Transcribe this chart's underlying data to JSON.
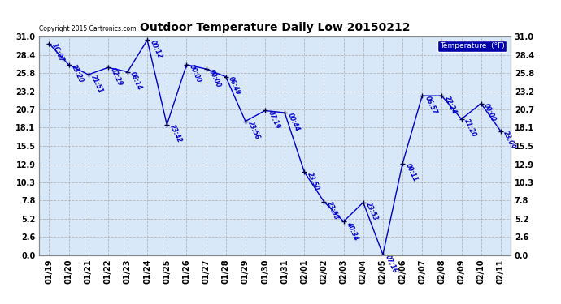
{
  "title": "Outdoor Temperature Daily Low 20150212",
  "copyright": "Copyright 2015 Cartronics.com",
  "legend_label": "Temperature  (°F)",
  "dates": [
    "01/19",
    "01/20",
    "01/21",
    "01/22",
    "01/23",
    "01/24",
    "01/25",
    "01/26",
    "01/27",
    "01/28",
    "01/29",
    "01/30",
    "01/31",
    "02/01",
    "02/02",
    "02/03",
    "02/04",
    "02/05",
    "02/06",
    "02/07",
    "02/08",
    "02/09",
    "02/10",
    "02/11"
  ],
  "temps": [
    30.0,
    27.0,
    25.6,
    26.6,
    26.0,
    30.5,
    18.5,
    27.0,
    26.4,
    25.3,
    19.0,
    20.5,
    20.2,
    11.8,
    7.6,
    4.8,
    7.5,
    0.1,
    13.0,
    22.6,
    22.6,
    19.3,
    21.5,
    17.6
  ],
  "time_labels": [
    "1C:07",
    "23:20",
    "21:51",
    "02:29",
    "06:14",
    "00:12",
    "23:42",
    "00:00",
    "00:00",
    "06:49",
    "23:56",
    "07:19",
    "00:44",
    "23:50",
    "23:58",
    "40:34",
    "23:53",
    "07:16",
    "00:11",
    "06:57",
    "22:24",
    "21:20",
    "00:00",
    "23:09"
  ],
  "ylim": [
    0.0,
    31.0
  ],
  "yticks": [
    0.0,
    2.6,
    5.2,
    7.8,
    10.3,
    12.9,
    15.5,
    18.1,
    20.7,
    23.2,
    25.8,
    28.4,
    31.0
  ],
  "line_color": "#0000cc",
  "marker_color": "#000044",
  "bg_color": "#d8e8f8",
  "grid_color": "#b0b0b0",
  "title_color": "#000000",
  "label_color": "#0000cc",
  "legend_bg": "#0000aa",
  "legend_fg": "#ffffff",
  "fig_width": 6.9,
  "fig_height": 3.75,
  "dpi": 100
}
